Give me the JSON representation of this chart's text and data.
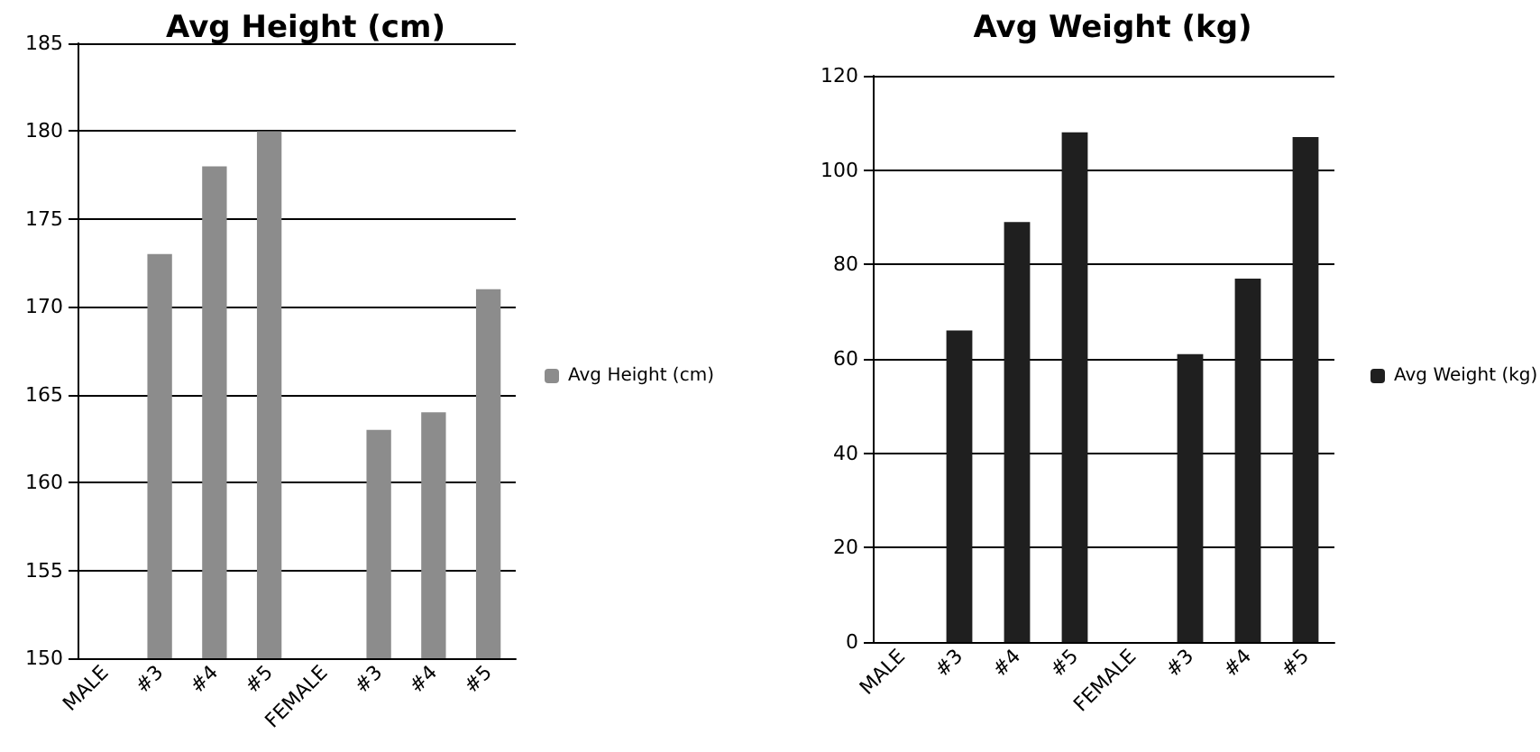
{
  "chart_data": [
    {
      "type": "bar",
      "title": "Avg Height (cm)",
      "categories": [
        "MALE",
        "#3",
        "#4",
        "#5",
        "FEMALE",
        "#3",
        "#4",
        "#5"
      ],
      "series": [
        {
          "name": "Avg Height (cm)",
          "color": "#8c8c8c",
          "values": [
            null,
            173,
            178,
            180,
            null,
            163,
            164,
            171
          ]
        }
      ],
      "ylim": [
        150,
        185
      ],
      "yticks": [
        150,
        155,
        160,
        165,
        170,
        175,
        180,
        185
      ],
      "grid": "y",
      "legend": "right"
    },
    {
      "type": "bar",
      "title": "Avg Weight (kg)",
      "categories": [
        "MALE",
        "#3",
        "#4",
        "#5",
        "FEMALE",
        "#3",
        "#4",
        "#5"
      ],
      "series": [
        {
          "name": "Avg Weight (kg)",
          "color": "#1f1f1f",
          "values": [
            null,
            66,
            89,
            108,
            null,
            61,
            77,
            107
          ]
        }
      ],
      "ylim": [
        0,
        120
      ],
      "yticks": [
        0,
        20,
        40,
        60,
        80,
        100,
        120
      ],
      "grid": "y",
      "legend": "right"
    }
  ]
}
